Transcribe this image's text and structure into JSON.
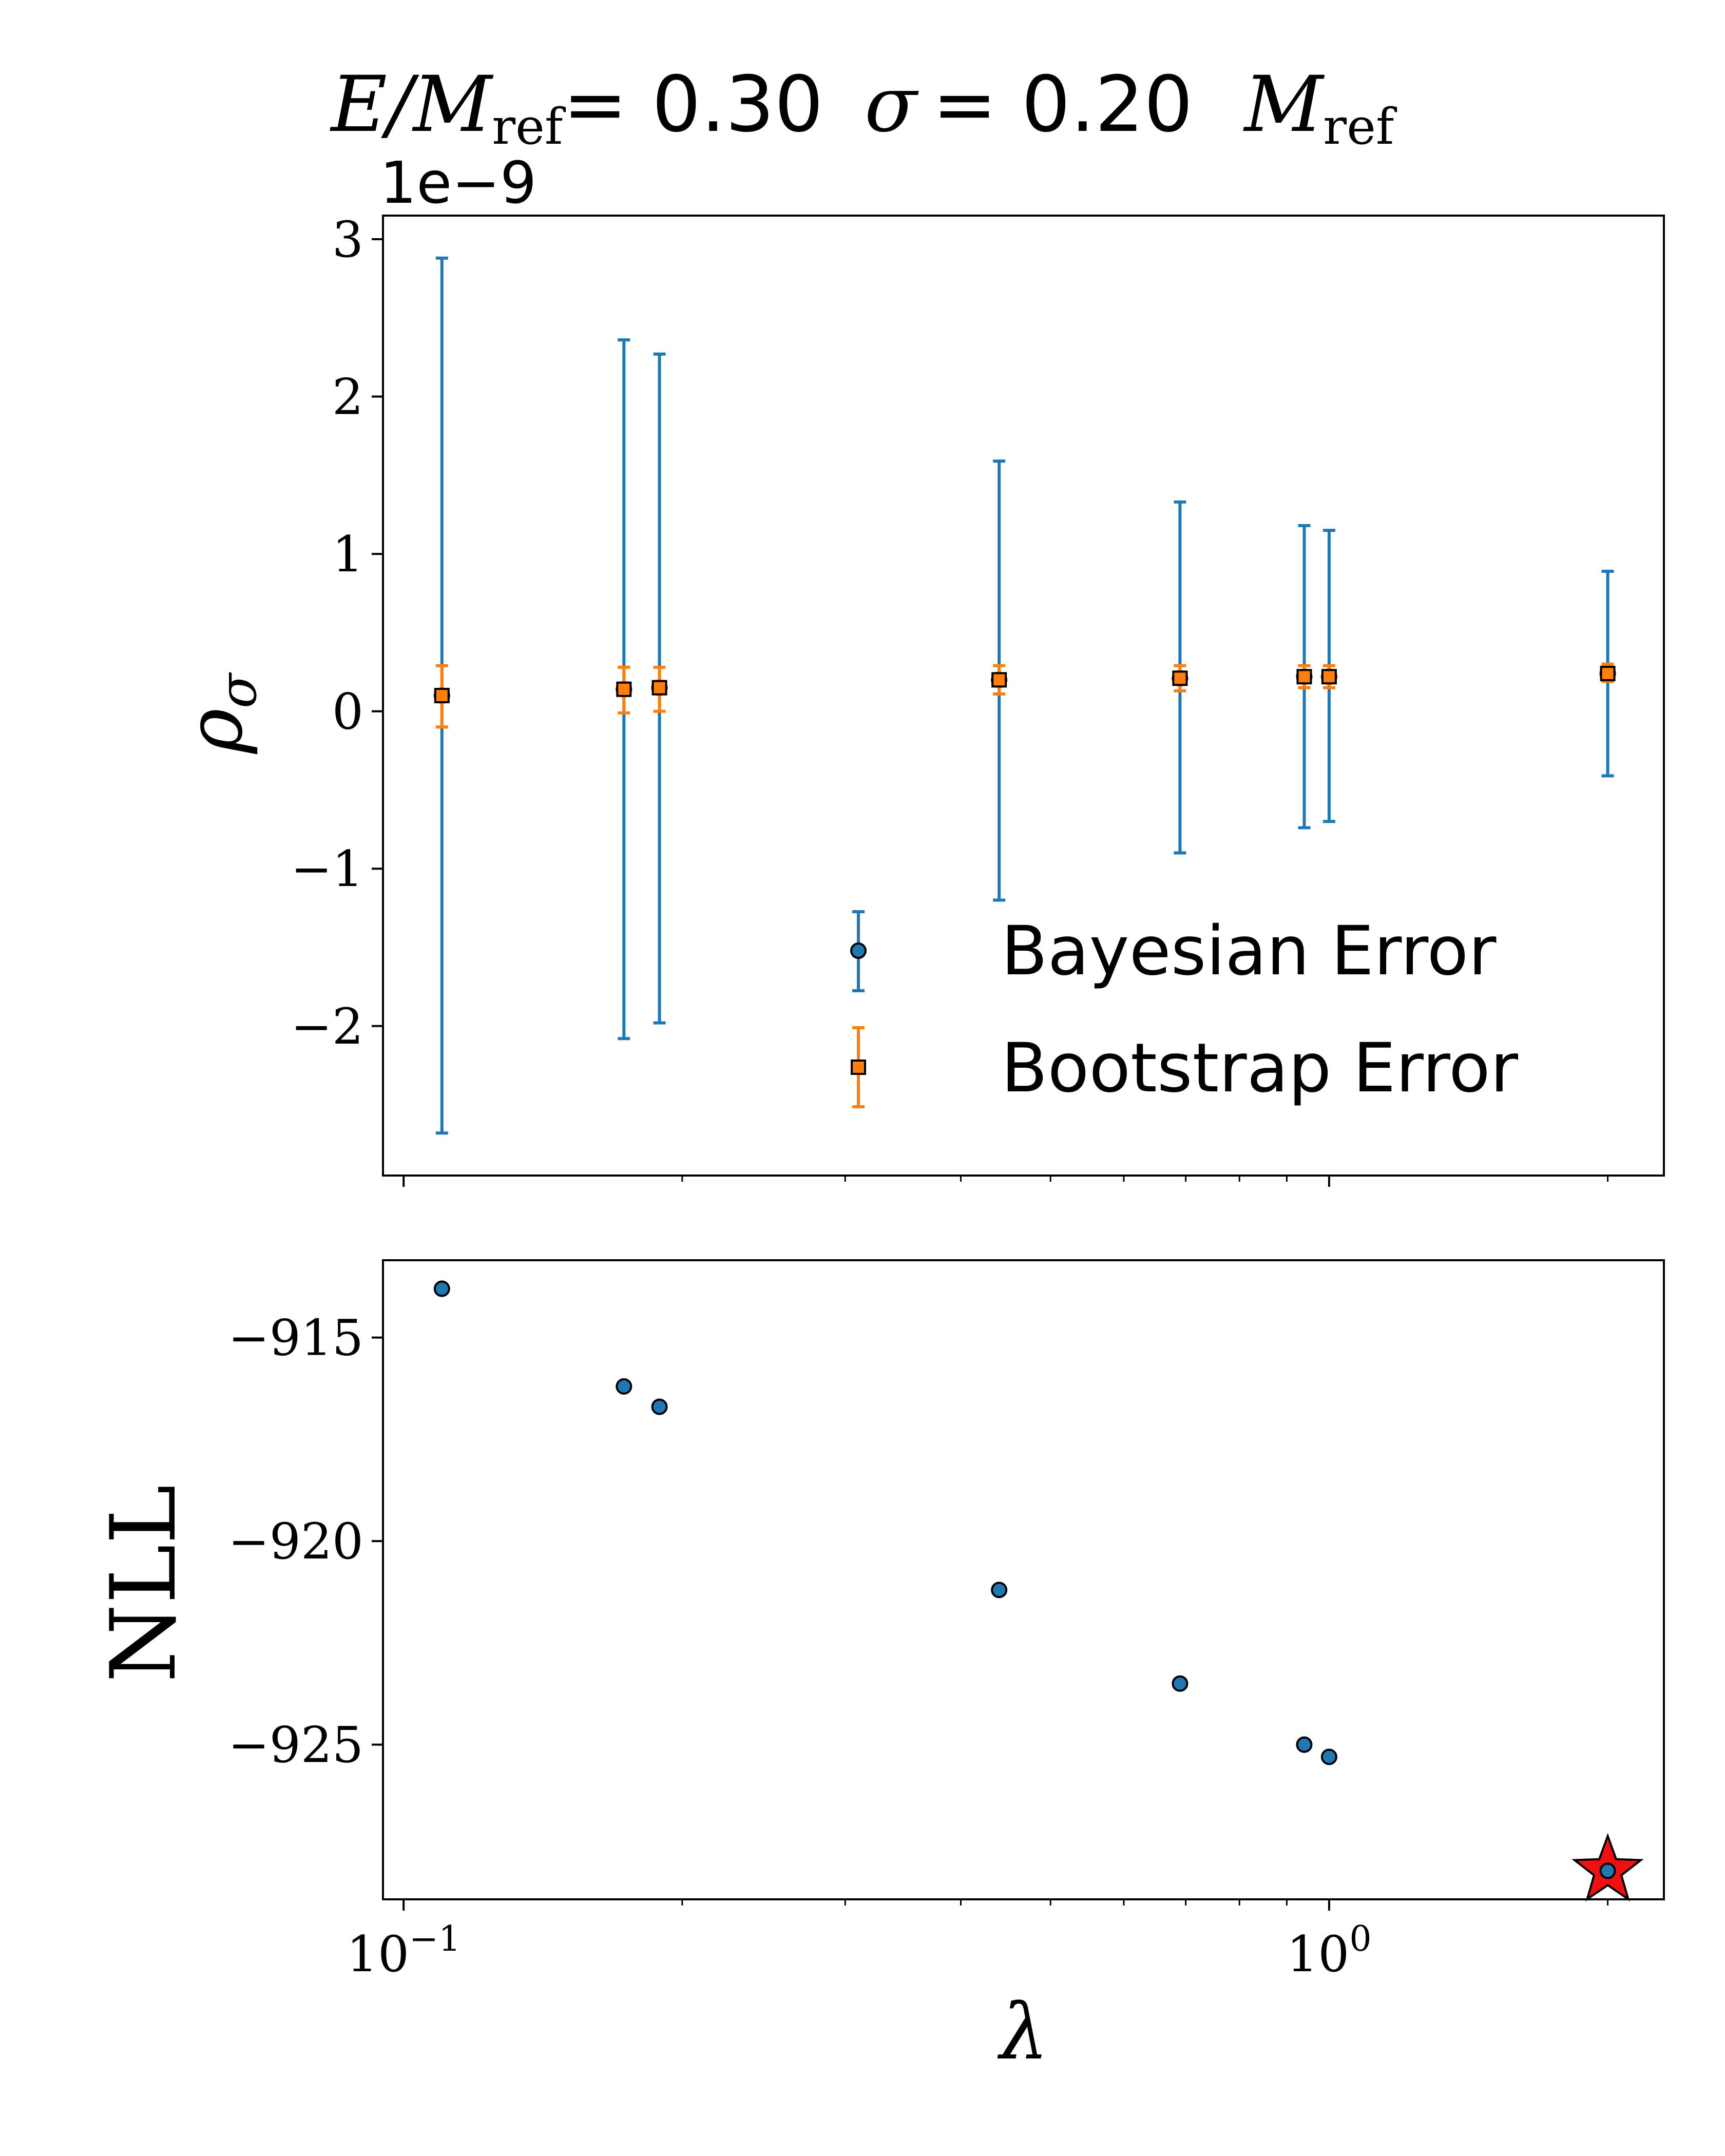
{
  "title": {
    "lhs_var": "E/M",
    "lhs_sub": "ref",
    "lhs_value": "= 0.30",
    "sigma_var": "σ",
    "sigma_value": "= 0.20",
    "unit_var": "M",
    "unit_sub": "ref"
  },
  "chart_data": [
    {
      "type": "scatter",
      "panel": "top",
      "ylabel": "ρ_σ",
      "offset_text": "1e−9",
      "xscale": "log",
      "xlim": [
        0.095,
        2.3
      ],
      "ylim": [
        -2.95,
        3.15
      ],
      "yticks": [
        -2,
        -1,
        0,
        1,
        2,
        3
      ],
      "ytick_labels": [
        "−2",
        "−1",
        "0",
        "1",
        "2",
        "3"
      ],
      "x": [
        0.11,
        0.173,
        0.189,
        0.44,
        0.69,
        0.94,
        1.0,
        2.0
      ],
      "series": [
        {
          "name": "Bayesian Error",
          "color": "#1f77b4",
          "marker": "circle",
          "y": [
            0.1,
            0.14,
            0.15,
            0.2,
            0.21,
            0.22,
            0.22,
            0.24
          ],
          "yerr_low": [
            -2.68,
            -2.08,
            -1.98,
            -1.2,
            -0.9,
            -0.74,
            -0.7,
            -0.41
          ],
          "yerr_high": [
            2.88,
            2.36,
            2.27,
            1.59,
            1.33,
            1.18,
            1.15,
            0.89
          ]
        },
        {
          "name": "Bootstrap Error",
          "color": "#ff7f0e",
          "marker": "square",
          "y": [
            0.1,
            0.14,
            0.15,
            0.2,
            0.21,
            0.22,
            0.22,
            0.24
          ],
          "yerr_low": [
            -0.1,
            -0.01,
            0.0,
            0.11,
            0.13,
            0.15,
            0.15,
            0.19
          ],
          "yerr_high": [
            0.29,
            0.28,
            0.28,
            0.29,
            0.29,
            0.29,
            0.29,
            0.3
          ]
        }
      ],
      "legend": {
        "placement": "lower right"
      }
    },
    {
      "type": "scatter",
      "panel": "bottom",
      "xlabel": "λ",
      "ylabel": "NLL",
      "xscale": "log",
      "xlim": [
        0.095,
        2.3
      ],
      "ylim": [
        -928.8,
        -913.1
      ],
      "yticks": [
        -925,
        -920,
        -915
      ],
      "ytick_labels": [
        "−925",
        "−920",
        "−915"
      ],
      "xtick_labels": [
        {
          "base": "10",
          "exp": "−1",
          "value": 0.1
        },
        {
          "base": "10",
          "exp": "0",
          "value": 1.0
        }
      ],
      "x": [
        0.11,
        0.173,
        0.189,
        0.44,
        0.69,
        0.94,
        1.0,
        2.0
      ],
      "y": [
        -913.8,
        -916.2,
        -916.7,
        -921.2,
        -923.5,
        -925.0,
        -925.3,
        -928.1
      ],
      "color": "#1f77b4",
      "best_point": {
        "x": 2.0,
        "y": -928.1,
        "marker": "star",
        "color": "#ee1111"
      }
    }
  ]
}
